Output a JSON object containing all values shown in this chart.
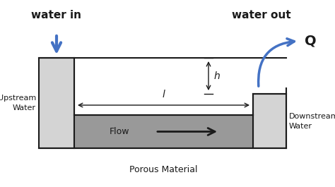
{
  "bg_color": "#ffffff",
  "light_gray": "#d4d4d4",
  "dark_gray": "#999999",
  "blue": "#4472c4",
  "black": "#1a1a1a",
  "label_water_in": "water in",
  "label_water_out": "water out",
  "label_Q": "Q",
  "label_h": "h",
  "label_l": "l",
  "label_flow": "Flow",
  "label_porous": "Porous Material",
  "label_upstream": "Upstream\nWater",
  "label_downstream": "Downstream\nWater",
  "fig_w": 4.74,
  "fig_h": 2.65,
  "dpi": 100
}
